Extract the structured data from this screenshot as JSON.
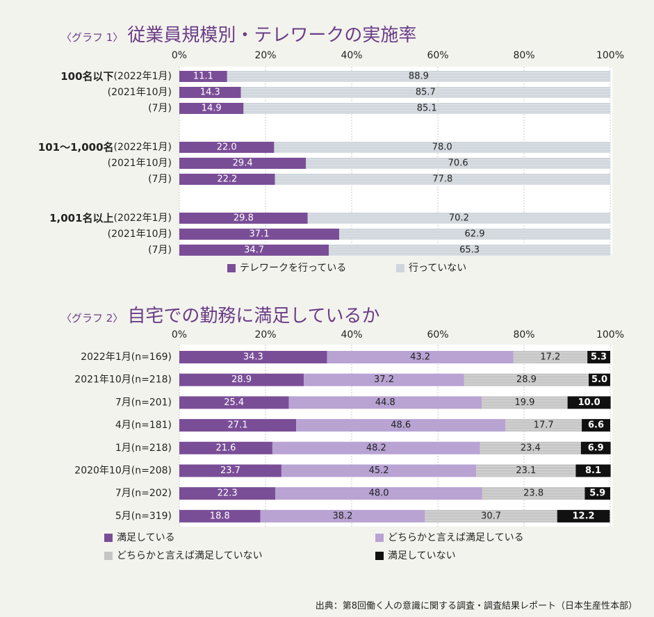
{
  "source": "出典：第8回働く人の意識に関する調査・調査結果レポート（日本生産性本部）",
  "colors": {
    "telework": "#7a4e97",
    "no_telework": "#cfd6dc",
    "satisfied": "#7a4e97",
    "somewhat_satisfied": "#b8a3d3",
    "somewhat_unsatisfied": "#c5c5c5",
    "unsatisfied": "#111111",
    "title": "#6a3c86"
  },
  "chart_data": [
    {
      "type": "bar",
      "stacked": true,
      "orientation": "horizontal",
      "tag": "〈グラフ 1〉",
      "title": "従業員規模別・テレワークの実施率",
      "xticks": [
        "0%",
        "20%",
        "40%",
        "60%",
        "80%",
        "100%"
      ],
      "xlim": [
        0,
        100
      ],
      "groups": [
        {
          "label": "100名以下",
          "rows": [
            {
              "label": "(2022年1月)",
              "values": [
                11.1,
                88.9
              ]
            },
            {
              "label": "(2021年10月)",
              "values": [
                14.3,
                85.7
              ]
            },
            {
              "label": "(7月)",
              "values": [
                14.9,
                85.1
              ]
            }
          ]
        },
        {
          "label": "101～1,000名",
          "rows": [
            {
              "label": "(2022年1月)",
              "values": [
                22.0,
                78.0
              ]
            },
            {
              "label": "(2021年10月)",
              "values": [
                29.4,
                70.6
              ]
            },
            {
              "label": "(7月)",
              "values": [
                22.2,
                77.8
              ]
            }
          ]
        },
        {
          "label": "1,001名以上",
          "rows": [
            {
              "label": "(2022年1月)",
              "values": [
                29.8,
                70.2
              ]
            },
            {
              "label": "(2021年10月)",
              "values": [
                37.1,
                62.9
              ]
            },
            {
              "label": "(7月)",
              "values": [
                34.7,
                65.3
              ]
            }
          ]
        }
      ],
      "series": [
        {
          "name": "テレワークを行っている"
        },
        {
          "name": "行っていない"
        }
      ]
    },
    {
      "type": "bar",
      "stacked": true,
      "orientation": "horizontal",
      "tag": "〈グラフ 2〉",
      "title": "自宅での勤務に満足しているか",
      "xticks": [
        "0%",
        "20%",
        "40%",
        "60%",
        "80%",
        "100%"
      ],
      "xlim": [
        0,
        100
      ],
      "rows": [
        {
          "label": "2022年1月(n=169)",
          "values": [
            34.3,
            43.2,
            17.2,
            5.3
          ]
        },
        {
          "label": "2021年10月(n=218)",
          "values": [
            28.9,
            37.2,
            28.9,
            5.0
          ]
        },
        {
          "label": "7月(n=201)",
          "values": [
            25.4,
            44.8,
            19.9,
            10.0
          ]
        },
        {
          "label": "4月(n=181)",
          "values": [
            27.1,
            48.6,
            17.7,
            6.6
          ]
        },
        {
          "label": "1月(n=218)",
          "values": [
            21.6,
            48.2,
            23.4,
            6.9
          ]
        },
        {
          "label": "2020年10月(n=208)",
          "values": [
            23.7,
            45.2,
            23.1,
            8.1
          ]
        },
        {
          "label": "7月(n=202)",
          "values": [
            22.3,
            48.0,
            23.8,
            5.9
          ]
        },
        {
          "label": "5月(n=319)",
          "values": [
            18.8,
            38.2,
            30.7,
            12.2
          ]
        }
      ],
      "series": [
        {
          "name": "満足している"
        },
        {
          "name": "どちらかと言えば満足している"
        },
        {
          "name": "どちらかと言えば満足していない"
        },
        {
          "name": "満足していない"
        }
      ]
    }
  ]
}
